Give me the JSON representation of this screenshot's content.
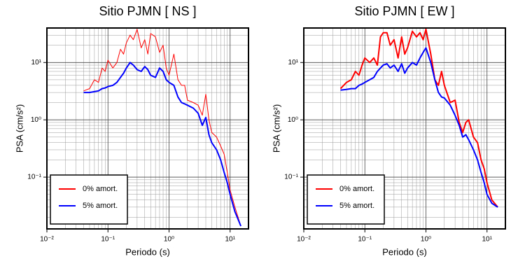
{
  "chart_data": [
    {
      "type": "line",
      "title": "Sitio PJMN [ NS ]",
      "xlabel": "Periodo (s)",
      "ylabel": "PSA (cm/s²)",
      "xscale": "log",
      "yscale": "log",
      "grid": true,
      "legend": "lower left",
      "xlim": [
        0.01,
        20
      ],
      "ylim": [
        0.0125,
        40
      ],
      "xticks": [
        {
          "value": 0.01,
          "label": "10⁻²"
        },
        {
          "value": 0.1,
          "label": "10⁻¹"
        },
        {
          "value": 1,
          "label": "10⁰"
        },
        {
          "value": 10,
          "label": "10¹"
        }
      ],
      "yticks": [
        {
          "value": 0.1,
          "label": "10⁻¹"
        },
        {
          "value": 1,
          "label": "10⁰"
        },
        {
          "value": 10,
          "label": "10¹"
        }
      ],
      "x": [
        0.04,
        0.05,
        0.06,
        0.07,
        0.08,
        0.09,
        0.1,
        0.12,
        0.14,
        0.16,
        0.18,
        0.2,
        0.23,
        0.26,
        0.3,
        0.35,
        0.4,
        0.45,
        0.5,
        0.6,
        0.7,
        0.8,
        0.9,
        1,
        1.2,
        1.4,
        1.6,
        1.8,
        2,
        2.5,
        3,
        3.5,
        4,
        4.5,
        5,
        6,
        7,
        8,
        9,
        10,
        12,
        15
      ],
      "series": [
        {
          "name": "0% amort.",
          "color": "#ff0000",
          "width": 1,
          "values": [
            3.2,
            3.5,
            5,
            4.5,
            8,
            7,
            11,
            8,
            10,
            17,
            14,
            22,
            30,
            25,
            38,
            18,
            25,
            14,
            32,
            28,
            15,
            20,
            8,
            6,
            14,
            5,
            4,
            4,
            2.2,
            2,
            1.8,
            1.2,
            2.8,
            1,
            0.6,
            0.5,
            0.35,
            0.25,
            0.12,
            0.06,
            0.03,
            0.014
          ]
        },
        {
          "name": "5% amort.",
          "color": "#0000ff",
          "width": 2,
          "values": [
            3.0,
            3.0,
            3.1,
            3.2,
            3.5,
            3.6,
            3.8,
            4.0,
            4.5,
            5.5,
            6.5,
            8,
            10,
            9,
            7.5,
            7,
            8.5,
            7.5,
            6,
            5.5,
            8,
            7,
            5,
            4.5,
            4,
            2.5,
            2,
            1.9,
            1.8,
            1.6,
            1.3,
            0.8,
            1.1,
            0.55,
            0.4,
            0.3,
            0.2,
            0.12,
            0.08,
            0.05,
            0.025,
            0.014
          ]
        }
      ]
    },
    {
      "type": "line",
      "title": "Sitio PJMN [ EW ]",
      "xlabel": "Periodo (s)",
      "ylabel": "PSA (cm/s²)",
      "xscale": "log",
      "yscale": "log",
      "grid": true,
      "legend": "lower left",
      "xlim": [
        0.01,
        20
      ],
      "ylim": [
        0.0125,
        40
      ],
      "xticks": [
        {
          "value": 0.01,
          "label": "10⁻²"
        },
        {
          "value": 0.1,
          "label": "10⁻¹"
        },
        {
          "value": 1,
          "label": "10⁰"
        },
        {
          "value": 10,
          "label": "10¹"
        }
      ],
      "yticks": [
        {
          "value": 0.1,
          "label": "10⁻¹"
        },
        {
          "value": 1,
          "label": "10⁰"
        },
        {
          "value": 10,
          "label": "10¹"
        }
      ],
      "x": [
        0.04,
        0.05,
        0.06,
        0.07,
        0.08,
        0.09,
        0.1,
        0.12,
        0.14,
        0.16,
        0.18,
        0.2,
        0.23,
        0.26,
        0.3,
        0.35,
        0.4,
        0.45,
        0.5,
        0.6,
        0.7,
        0.8,
        0.9,
        1,
        1.2,
        1.4,
        1.6,
        1.8,
        2,
        2.5,
        3,
        3.5,
        4,
        4.5,
        5,
        6,
        7,
        8,
        9,
        10,
        12,
        15
      ],
      "series": [
        {
          "name": "0% amort.",
          "color": "#ff0000",
          "width": 2,
          "values": [
            3.5,
            4.5,
            5,
            7,
            6,
            9,
            12,
            10,
            12,
            9,
            28,
            33,
            33,
            20,
            25,
            12,
            28,
            14,
            18,
            35,
            28,
            33,
            25,
            38,
            14,
            5,
            4,
            7,
            4,
            2,
            2.2,
            0.9,
            0.6,
            0.9,
            1,
            0.5,
            0.4,
            0.2,
            0.14,
            0.08,
            0.04,
            0.03
          ]
        },
        {
          "name": "5% amort.",
          "color": "#0000ff",
          "width": 2,
          "values": [
            3.3,
            3.4,
            3.5,
            3.5,
            4,
            4.2,
            4.5,
            5,
            5.5,
            7,
            8,
            9,
            9.5,
            8,
            9,
            7,
            9.5,
            6.5,
            8,
            10,
            9,
            12,
            15,
            18,
            10,
            5,
            3,
            2.5,
            2.4,
            1.8,
            1.2,
            0.8,
            0.5,
            0.55,
            0.45,
            0.3,
            0.2,
            0.12,
            0.08,
            0.05,
            0.035,
            0.03
          ]
        }
      ]
    }
  ]
}
